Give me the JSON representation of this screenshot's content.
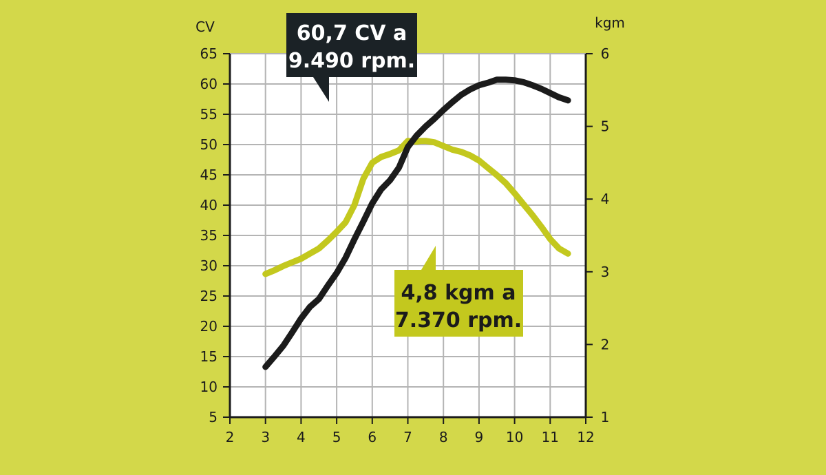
{
  "colors": {
    "background": "#d3d84a",
    "plot_area": "#ffffff",
    "grid": "#b4b4b4",
    "axis": "#1b1b1b",
    "power_line": "#1b1b1b",
    "torque_line": "#c3c81e",
    "power_callout_bg": "#1b2226",
    "power_callout_text": "#ffffff",
    "torque_callout_bg": "#c3c81e",
    "torque_callout_text": "#1b1b1b"
  },
  "chart_data": {
    "type": "line",
    "x_axis": {
      "min": 2,
      "max": 12,
      "ticks": [
        2,
        3,
        4,
        5,
        6,
        7,
        8,
        9,
        10,
        11,
        12
      ],
      "tick_labels": [
        "2",
        "3",
        "4",
        "5",
        "6",
        "7",
        "8",
        "9",
        "10",
        "11",
        "12"
      ]
    },
    "y_left": {
      "unit": "CV",
      "min": 5,
      "max": 65,
      "ticks": [
        5,
        10,
        15,
        20,
        25,
        30,
        35,
        40,
        45,
        50,
        55,
        60,
        65
      ],
      "tick_labels": [
        "5",
        "10",
        "15",
        "20",
        "25",
        "30",
        "35",
        "40",
        "45",
        "50",
        "55",
        "60",
        "65"
      ]
    },
    "y_right": {
      "unit": "kgm",
      "min": 1,
      "max": 6,
      "ticks": [
        1,
        2,
        3,
        4,
        5,
        6
      ],
      "tick_labels": [
        "1",
        "2",
        "3",
        "4",
        "5",
        "6"
      ]
    },
    "grid": true,
    "series": [
      {
        "axis": "left",
        "color": "#1b1b1b",
        "x": [
          3.0,
          3.25,
          3.5,
          3.75,
          4.0,
          4.25,
          4.5,
          4.75,
          5.0,
          5.25,
          5.5,
          5.75,
          6.0,
          6.25,
          6.5,
          6.75,
          7.0,
          7.25,
          7.5,
          7.75,
          8.0,
          8.25,
          8.5,
          8.75,
          9.0,
          9.25,
          9.5,
          9.75,
          10.0,
          10.25,
          10.5,
          10.75,
          11.0,
          11.25,
          11.5
        ],
        "y": [
          13.3,
          15.0,
          16.8,
          19.0,
          21.3,
          23.2,
          24.5,
          26.7,
          28.8,
          31.3,
          34.4,
          37.3,
          40.3,
          42.6,
          44.1,
          46.2,
          49.6,
          51.5,
          53.0,
          54.3,
          55.7,
          57.0,
          58.2,
          59.1,
          59.8,
          60.2,
          60.7,
          60.7,
          60.6,
          60.3,
          59.8,
          59.2,
          58.5,
          57.8,
          57.3
        ]
      },
      {
        "axis": "right",
        "color": "#c3c81e",
        "x": [
          3.0,
          3.25,
          3.5,
          3.75,
          4.0,
          4.25,
          4.5,
          4.75,
          5.0,
          5.25,
          5.5,
          5.75,
          6.0,
          6.25,
          6.5,
          6.75,
          7.0,
          7.25,
          7.37,
          7.5,
          7.75,
          8.0,
          8.25,
          8.5,
          8.75,
          9.0,
          9.25,
          9.5,
          9.75,
          10.0,
          10.25,
          10.5,
          10.75,
          11.0,
          11.25,
          11.5
        ],
        "y": [
          2.97,
          3.02,
          3.08,
          3.13,
          3.18,
          3.25,
          3.32,
          3.43,
          3.55,
          3.68,
          3.92,
          4.28,
          4.5,
          4.58,
          4.62,
          4.67,
          4.8,
          4.79,
          4.8,
          4.8,
          4.78,
          4.73,
          4.68,
          4.65,
          4.6,
          4.53,
          4.43,
          4.33,
          4.22,
          4.08,
          3.93,
          3.78,
          3.62,
          3.45,
          3.32,
          3.25
        ]
      }
    ],
    "annotations": [
      {
        "line1": "60,7 CV a",
        "line2": "9.490 rpm."
      },
      {
        "line1": "4,8 kgm a",
        "line2": "7.370 rpm."
      }
    ]
  }
}
